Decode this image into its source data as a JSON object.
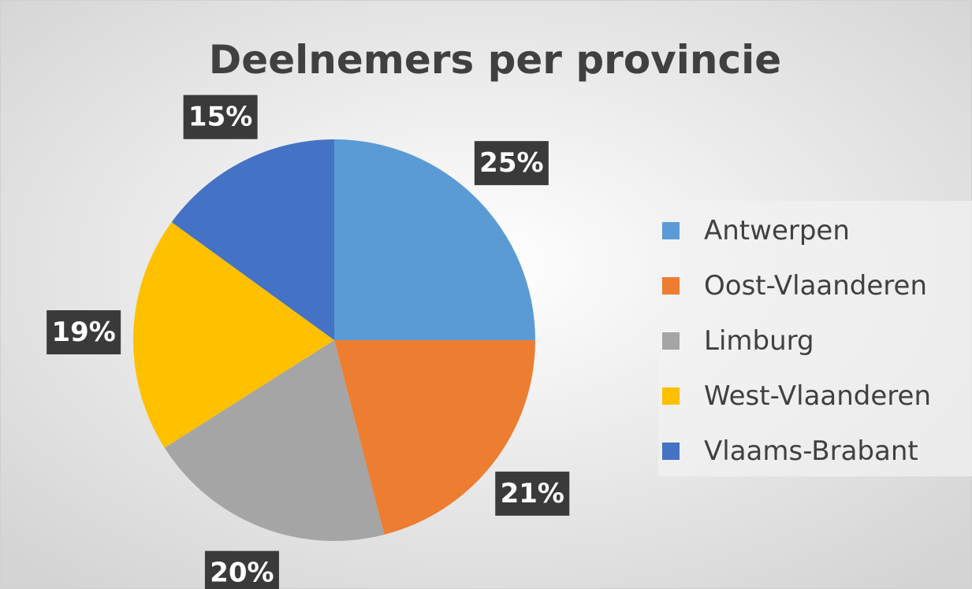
{
  "chart_data": {
    "type": "pie",
    "title": "Deelnemers per provincie",
    "categories": [
      "Antwerpen",
      "Oost-Vlaanderen",
      "Limburg",
      "West-Vlaanderen",
      "Vlaams-Brabant"
    ],
    "values": [
      25,
      21,
      20,
      19,
      15
    ],
    "value_labels": [
      "25%",
      "21%",
      "20%",
      "19%",
      "15%"
    ],
    "colors": [
      "#5b9bd5",
      "#ed7d31",
      "#a5a5a5",
      "#ffc000",
      "#4472c4"
    ],
    "legend": "right"
  }
}
